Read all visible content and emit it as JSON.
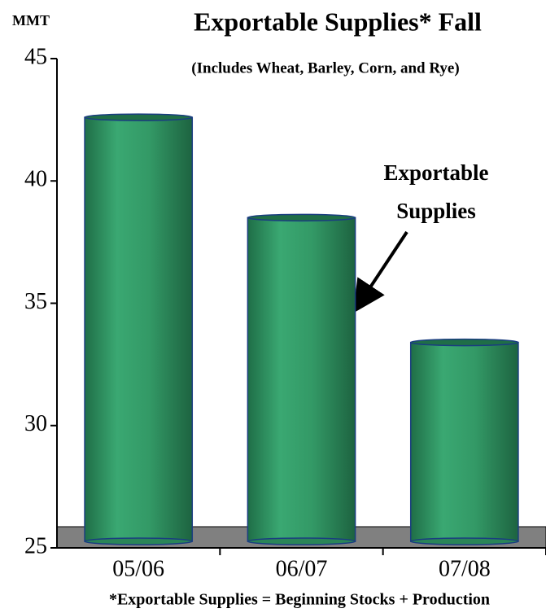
{
  "chart_data": {
    "type": "bar",
    "title": "Exportable Supplies* Fall",
    "subtitle": "(Includes Wheat, Barley, Corn, and Rye)",
    "y_label": "MMT",
    "annotation": [
      "Exportable",
      "Supplies"
    ],
    "footnote": "*Exportable Supplies = Beginning Stocks + Production",
    "categories": [
      "05/06",
      "06/07",
      "07/08"
    ],
    "values": [
      42.6,
      38.5,
      33.4
    ],
    "color": "#339966",
    "ylim": [
      25,
      45
    ],
    "yticks": [
      25,
      30,
      35,
      40,
      45
    ],
    "grid": false
  }
}
